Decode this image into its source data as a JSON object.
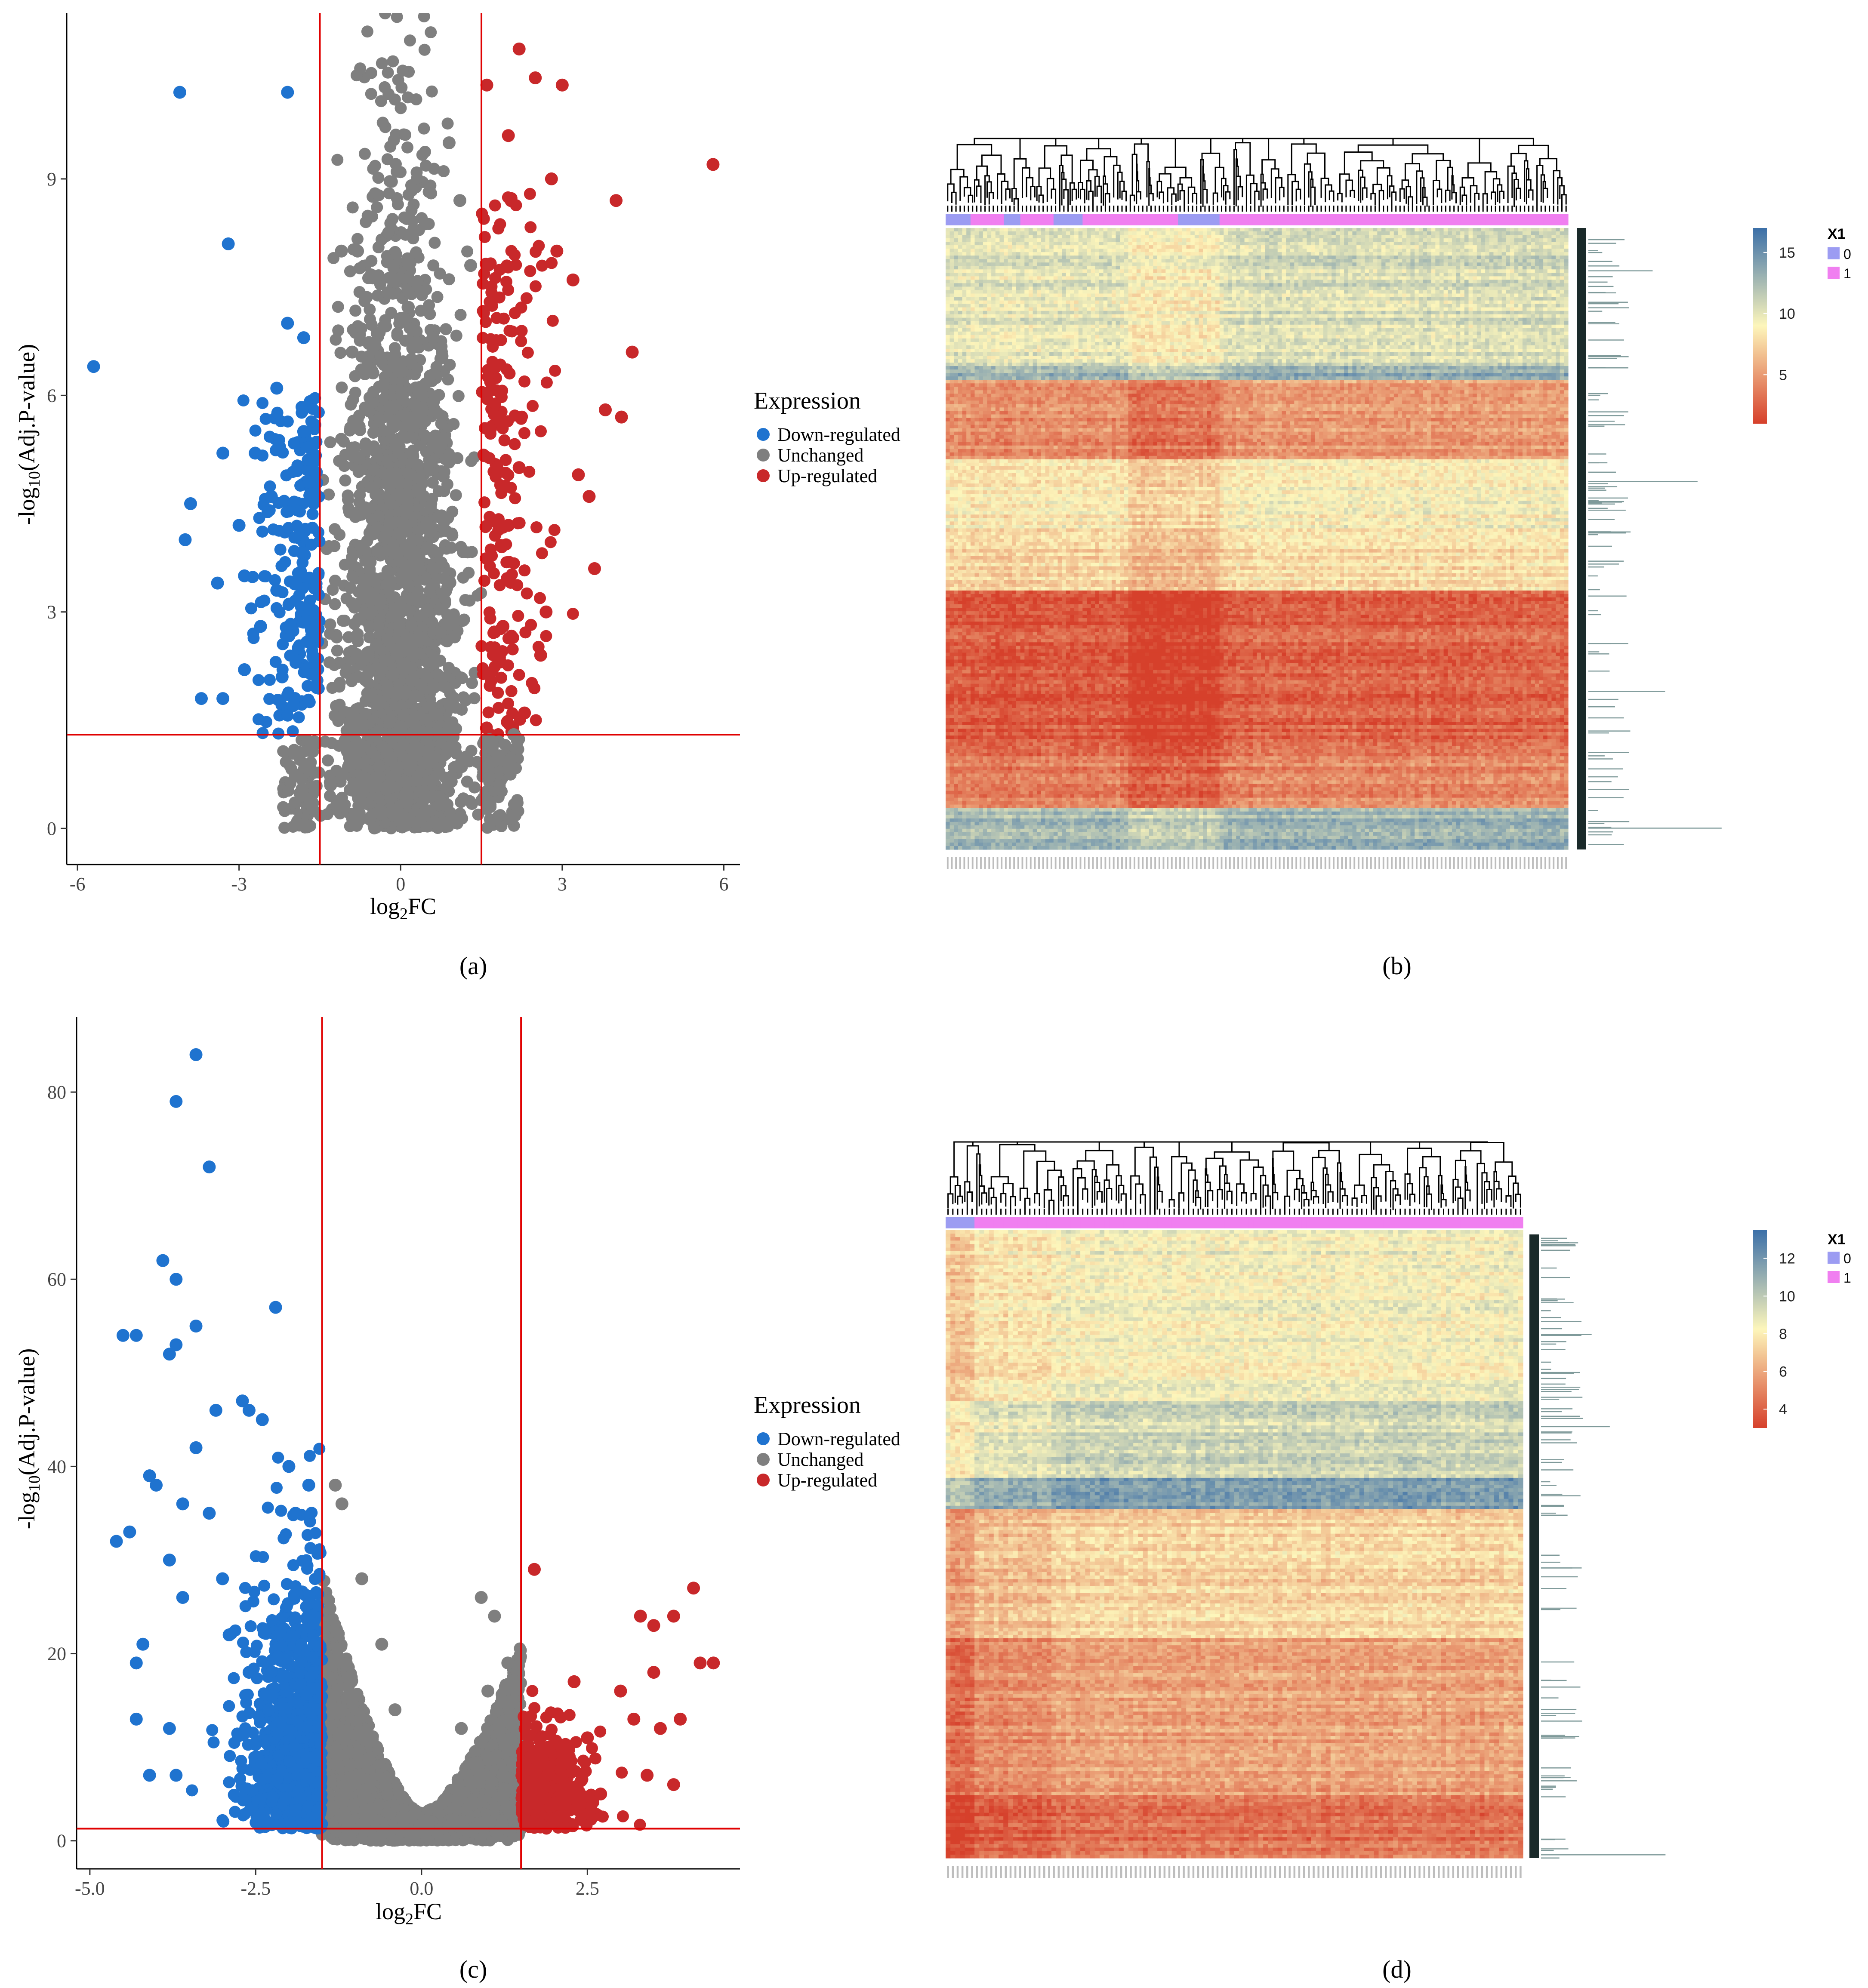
{
  "colors": {
    "down": "#1f73cf",
    "unchanged": "#7f7f7f",
    "up": "#c8282a",
    "threshold": "#e00000",
    "group0": "#9c9cf2",
    "group1": "#f07ff0",
    "heat_low": "#d6402b",
    "heat_mid": "#fdf6bb",
    "heat_high": "#3b6fa8"
  },
  "legend": {
    "title": "Expression",
    "items": [
      "Down-regulated",
      "Unchanged",
      "Up-regulated"
    ]
  },
  "panel_labels": [
    "(a)",
    "(b)",
    "(c)",
    "(d)"
  ],
  "chart_data": [
    {
      "panel": "a",
      "type": "scatter",
      "xlabel": "log2FC",
      "ylabel": "-log10(Adj.P-value)",
      "xlim": [
        -6.2,
        6.3
      ],
      "ylim": [
        -0.5,
        11.3
      ],
      "xticks": [
        -6,
        -3,
        0,
        3,
        6
      ],
      "yticks": [
        0,
        3,
        6,
        9
      ],
      "thresholds": {
        "vlines": [
          -1.5,
          1.5
        ],
        "hline": 1.3
      },
      "grid": false,
      "legend_position": "right",
      "series": [
        {
          "name": "Down-regulated",
          "points": [
            [
              -5.7,
              6.4
            ],
            [
              -4.1,
              10.2
            ],
            [
              -2.1,
              10.2
            ],
            [
              -3.2,
              8.1
            ],
            [
              -2.1,
              7.0
            ],
            [
              -1.8,
              6.8
            ],
            [
              -2.3,
              6.1
            ],
            [
              -3.3,
              5.2
            ],
            [
              -3.9,
              4.5
            ],
            [
              -4.0,
              4.0
            ],
            [
              -3.0,
              4.2
            ],
            [
              -3.4,
              3.4
            ],
            [
              -3.7,
              1.8
            ],
            [
              -3.3,
              1.8
            ],
            [
              -2.9,
              2.2
            ],
            [
              -2.6,
              2.8
            ],
            [
              -2.3,
              3.3
            ],
            [
              -1.9,
              2.5
            ],
            [
              -2.0,
              1.7
            ],
            [
              -1.7,
              4.8
            ],
            [
              -1.8,
              5.5
            ],
            [
              -2.4,
              4.6
            ],
            [
              -2.7,
              5.2
            ],
            [
              -2.9,
              3.5
            ],
            [
              -2.2,
              2.1
            ]
          ]
        },
        {
          "name": "Unchanged",
          "points": [
            [
              -1.1,
              8.0
            ],
            [
              -0.8,
              8.0
            ],
            [
              -1.6,
              1.2
            ],
            [
              -1.3,
              0.6
            ],
            [
              0.9,
              9.5
            ],
            [
              1.1,
              8.7
            ],
            [
              1.3,
              7.8
            ],
            [
              1.7,
              1.2
            ],
            [
              2.1,
              1.3
            ],
            [
              -0.9,
              6.6
            ],
            [
              0.6,
              6.8
            ],
            [
              0.4,
              5.8
            ]
          ]
        },
        {
          "name": "Up-regulated",
          "points": [
            [
              1.6,
              10.3
            ],
            [
              2.2,
              10.8
            ],
            [
              2.5,
              10.4
            ],
            [
              3.0,
              10.3
            ],
            [
              5.8,
              9.2
            ],
            [
              4.0,
              8.7
            ],
            [
              2.0,
              9.6
            ],
            [
              2.8,
              9.0
            ],
            [
              2.9,
              8.0
            ],
            [
              3.2,
              7.6
            ],
            [
              4.3,
              6.6
            ],
            [
              3.8,
              5.8
            ],
            [
              4.1,
              5.7
            ],
            [
              3.3,
              4.9
            ],
            [
              3.5,
              4.6
            ],
            [
              3.6,
              3.6
            ],
            [
              2.7,
              3.0
            ],
            [
              2.6,
              2.4
            ],
            [
              2.3,
              1.6
            ],
            [
              1.9,
              2.8
            ],
            [
              2.0,
              4.2
            ],
            [
              2.2,
              5.0
            ]
          ]
        }
      ]
    },
    {
      "panel": "b",
      "type": "heatmap",
      "colorbar": {
        "ticks": [
          5,
          10,
          15
        ],
        "range": [
          1,
          17
        ]
      },
      "annotation": {
        "title": "X1",
        "levels": [
          "0",
          "1"
        ]
      }
    },
    {
      "panel": "c",
      "type": "scatter",
      "xlabel": "log2FC",
      "ylabel": "-log10(Adj.P-value)",
      "xlim": [
        -5.2,
        4.8
      ],
      "ylim": [
        -3,
        88
      ],
      "xticks": [
        -5.0,
        -2.5,
        0.0,
        2.5
      ],
      "yticks": [
        0,
        20,
        40,
        60,
        80
      ],
      "thresholds": {
        "vlines": [
          -1.5,
          1.5
        ],
        "hline": 1.3
      },
      "grid": false,
      "legend_position": "right",
      "series": [
        {
          "name": "Down-regulated",
          "points": [
            [
              -3.4,
              84
            ],
            [
              -3.7,
              79
            ],
            [
              -3.2,
              72
            ],
            [
              -3.9,
              62
            ],
            [
              -3.7,
              60
            ],
            [
              -2.2,
              57
            ],
            [
              -4.3,
              54
            ],
            [
              -4.5,
              54
            ],
            [
              -3.4,
              55
            ],
            [
              -3.8,
              52
            ],
            [
              -3.7,
              53
            ],
            [
              -3.1,
              46
            ],
            [
              -2.6,
              46
            ],
            [
              -2.7,
              47
            ],
            [
              -2.4,
              45
            ],
            [
              -3.4,
              42
            ],
            [
              -4.1,
              39
            ],
            [
              -4.0,
              38
            ],
            [
              -3.6,
              36
            ],
            [
              -3.2,
              35
            ],
            [
              -4.6,
              32
            ],
            [
              -4.4,
              33
            ],
            [
              -4.2,
              21
            ],
            [
              -4.3,
              19
            ],
            [
              -4.3,
              13
            ],
            [
              -4.1,
              7
            ],
            [
              -3.8,
              12
            ],
            [
              -3.7,
              7
            ],
            [
              -3.6,
              26
            ],
            [
              -3.8,
              30
            ],
            [
              -3.0,
              28
            ],
            [
              -2.9,
              22
            ],
            [
              -2.6,
              18
            ],
            [
              -2.3,
              14
            ],
            [
              -2.0,
              40
            ],
            [
              -1.9,
              35
            ],
            [
              -1.7,
              38
            ]
          ]
        },
        {
          "name": "Unchanged",
          "points": [
            [
              -1.3,
              38
            ],
            [
              -1.2,
              36
            ],
            [
              -0.9,
              28
            ],
            [
              -0.6,
              21
            ],
            [
              0.9,
              26
            ],
            [
              1.1,
              24
            ],
            [
              1.3,
              19
            ],
            [
              0.6,
              12
            ],
            [
              -0.4,
              14
            ],
            [
              1.0,
              16
            ]
          ]
        },
        {
          "name": "Up-regulated",
          "points": [
            [
              1.7,
              29
            ],
            [
              3.3,
              24
            ],
            [
              3.5,
              23
            ],
            [
              4.1,
              27
            ],
            [
              3.8,
              24
            ],
            [
              4.4,
              19
            ],
            [
              4.2,
              19
            ],
            [
              3.5,
              18
            ],
            [
              3.0,
              16
            ],
            [
              3.9,
              13
            ],
            [
              3.2,
              13
            ],
            [
              3.6,
              12
            ],
            [
              2.5,
              11
            ],
            [
              2.2,
              9
            ],
            [
              3.8,
              6
            ],
            [
              3.4,
              7
            ],
            [
              2.7,
              5
            ],
            [
              2.0,
              4
            ],
            [
              1.9,
              7
            ],
            [
              2.3,
              17
            ]
          ]
        }
      ]
    },
    {
      "panel": "d",
      "type": "heatmap",
      "colorbar": {
        "ticks": [
          4,
          6,
          8,
          10,
          12
        ],
        "range": [
          3,
          13.5
        ]
      },
      "annotation": {
        "title": "X1",
        "levels": [
          "0",
          "1"
        ]
      }
    }
  ]
}
